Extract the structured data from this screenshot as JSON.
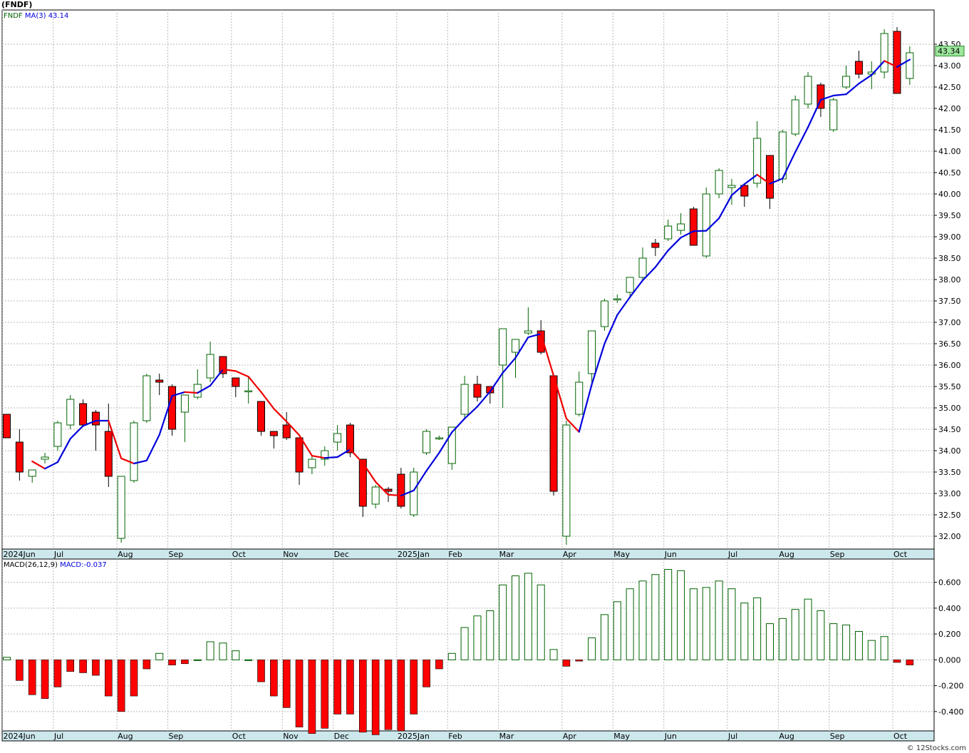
{
  "header": {
    "title": "(FNDF)",
    "credit": "© 12Stocks.com"
  },
  "colors": {
    "grid": "#b8b8b8",
    "up_outline": "#006400",
    "down_fill": "#ff0000",
    "ma_up": "#0000dd",
    "ma_down": "#ee0000",
    "macd_pos": "#006400",
    "macd_neg": "#ff0000",
    "axis_bar": "#cde8ec",
    "last_price_bg": "#9ee89e"
  },
  "chart_data": [
    {
      "type": "candlestick",
      "legend": {
        "symbol": "FNDF",
        "ma_label": "MA(3)",
        "ma_value": "43.14"
      },
      "last_price": "43.34",
      "ylim": [
        31.7,
        44.3
      ],
      "yticks": [
        "32.00",
        "32.50",
        "33.00",
        "33.50",
        "34.00",
        "34.50",
        "35.00",
        "35.50",
        "36.00",
        "36.50",
        "37.00",
        "37.50",
        "38.00",
        "38.50",
        "39.00",
        "39.50",
        "40.00",
        "40.50",
        "41.00",
        "41.50",
        "42.00",
        "42.50",
        "43.00",
        "43.50"
      ],
      "xticks": [
        {
          "label": "2024Jun",
          "week": 0
        },
        {
          "label": "Jul",
          "week": 4
        },
        {
          "label": "Aug",
          "week": 9
        },
        {
          "label": "Sep",
          "week": 13
        },
        {
          "label": "Oct",
          "week": 18
        },
        {
          "label": "Nov",
          "week": 22
        },
        {
          "label": "Dec",
          "week": 26
        },
        {
          "label": "2025Jan",
          "week": 31
        },
        {
          "label": "Feb",
          "week": 35
        },
        {
          "label": "Mar",
          "week": 39
        },
        {
          "label": "Apr",
          "week": 44
        },
        {
          "label": "May",
          "week": 48
        },
        {
          "label": "Jun",
          "week": 52
        },
        {
          "label": "Jul",
          "week": 57
        },
        {
          "label": "Aug",
          "week": 61
        },
        {
          "label": "Sep",
          "week": 65
        },
        {
          "label": "Oct",
          "week": 70
        }
      ],
      "ohlc": [
        [
          34.85,
          34.85,
          34.3,
          34.3
        ],
        [
          34.2,
          34.5,
          33.3,
          33.5
        ],
        [
          33.4,
          33.5,
          33.25,
          33.55
        ],
        [
          33.8,
          33.95,
          33.7,
          33.85
        ],
        [
          34.1,
          34.7,
          34.0,
          34.65
        ],
        [
          34.6,
          35.3,
          34.5,
          35.2
        ],
        [
          35.1,
          35.2,
          34.55,
          34.6
        ],
        [
          34.9,
          34.95,
          34.0,
          34.6
        ],
        [
          34.45,
          35.1,
          33.15,
          33.4
        ],
        [
          31.95,
          33.4,
          31.85,
          33.4
        ],
        [
          33.3,
          34.7,
          33.25,
          34.65
        ],
        [
          34.7,
          35.8,
          34.65,
          35.75
        ],
        [
          35.65,
          35.8,
          35.3,
          35.6
        ],
        [
          35.5,
          35.55,
          34.35,
          34.5
        ],
        [
          34.9,
          35.3,
          34.2,
          35.3
        ],
        [
          35.25,
          35.9,
          35.2,
          35.55
        ],
        [
          35.7,
          36.55,
          35.6,
          36.25
        ],
        [
          36.2,
          36.2,
          35.7,
          35.8
        ],
        [
          35.7,
          35.7,
          35.25,
          35.5
        ],
        [
          35.4,
          35.75,
          35.1,
          35.4
        ],
        [
          35.15,
          35.15,
          34.35,
          34.45
        ],
        [
          34.45,
          34.45,
          34.05,
          34.35
        ],
        [
          34.6,
          34.9,
          34.25,
          34.3
        ],
        [
          34.3,
          34.3,
          33.2,
          33.5
        ],
        [
          33.6,
          33.9,
          33.45,
          33.8
        ],
        [
          33.8,
          34.1,
          33.65,
          34.0
        ],
        [
          34.2,
          34.6,
          34.0,
          34.4
        ],
        [
          34.6,
          34.65,
          33.85,
          33.95
        ],
        [
          33.8,
          33.8,
          32.45,
          32.7
        ],
        [
          32.75,
          33.2,
          32.65,
          33.15
        ],
        [
          33.1,
          33.15,
          32.8,
          33.05
        ],
        [
          33.45,
          33.6,
          32.65,
          32.7
        ],
        [
          32.5,
          33.6,
          32.45,
          33.5
        ],
        [
          33.95,
          34.5,
          33.9,
          34.45
        ],
        [
          34.3,
          34.35,
          34.25,
          34.3
        ],
        [
          33.7,
          34.5,
          33.55,
          34.55
        ],
        [
          34.85,
          35.75,
          34.75,
          35.55
        ],
        [
          35.55,
          35.75,
          35.15,
          35.25
        ],
        [
          35.5,
          35.5,
          35.1,
          35.35
        ],
        [
          36.0,
          36.85,
          35.0,
          36.85
        ],
        [
          36.3,
          36.6,
          35.7,
          36.6
        ],
        [
          36.75,
          37.35,
          36.7,
          36.8
        ],
        [
          36.8,
          37.05,
          36.25,
          36.3
        ],
        [
          35.75,
          35.75,
          32.95,
          33.05
        ],
        [
          32.0,
          34.7,
          31.8,
          34.6
        ],
        [
          34.85,
          35.85,
          34.8,
          35.6
        ],
        [
          35.8,
          36.8,
          35.6,
          36.8
        ],
        [
          36.9,
          37.55,
          36.8,
          37.5
        ],
        [
          37.55,
          37.65,
          37.45,
          37.55
        ],
        [
          37.7,
          38.05,
          37.6,
          38.05
        ],
        [
          38.05,
          38.75,
          38.0,
          38.5
        ],
        [
          38.85,
          38.95,
          38.55,
          38.75
        ],
        [
          38.95,
          39.4,
          38.9,
          39.25
        ],
        [
          39.15,
          39.55,
          39.05,
          39.3
        ],
        [
          39.65,
          39.7,
          38.8,
          38.8
        ],
        [
          38.55,
          40.15,
          38.5,
          40.0
        ],
        [
          40.0,
          40.6,
          39.9,
          40.55
        ],
        [
          40.15,
          40.35,
          39.75,
          40.2
        ],
        [
          40.2,
          40.25,
          39.7,
          39.95
        ],
        [
          40.25,
          41.7,
          40.15,
          41.3
        ],
        [
          40.9,
          40.9,
          39.65,
          39.9
        ],
        [
          40.35,
          41.5,
          40.25,
          41.45
        ],
        [
          41.4,
          42.3,
          41.35,
          42.2
        ],
        [
          42.1,
          42.85,
          42.0,
          42.75
        ],
        [
          42.55,
          42.6,
          41.8,
          42.0
        ],
        [
          41.5,
          42.25,
          41.45,
          42.2
        ],
        [
          42.5,
          43.0,
          42.45,
          42.75
        ],
        [
          43.1,
          43.35,
          42.7,
          42.8
        ],
        [
          42.8,
          43.1,
          42.45,
          42.85
        ],
        [
          42.85,
          43.85,
          42.7,
          43.75
        ],
        [
          43.8,
          43.9,
          42.35,
          42.35
        ],
        [
          42.7,
          43.45,
          42.55,
          43.3
        ]
      ],
      "ma3": [
        null,
        null,
        33.75,
        33.58,
        33.73,
        34.28,
        34.58,
        34.7,
        34.7,
        33.82,
        33.7,
        33.77,
        34.37,
        35.28,
        35.37,
        35.35,
        35.52,
        35.9,
        35.86,
        35.73,
        35.37,
        34.98,
        34.68,
        34.36,
        33.88,
        33.83,
        33.85,
        34.03,
        33.71,
        33.27,
        32.97,
        32.95,
        33.07,
        33.53,
        33.95,
        34.43,
        34.75,
        35.03,
        35.38,
        35.82,
        36.17,
        36.65,
        36.73,
        35.75,
        34.75,
        34.44,
        35.55,
        36.5,
        37.17,
        37.59,
        37.98,
        38.29,
        38.68,
        38.98,
        39.13,
        39.14,
        39.43,
        39.97,
        40.23,
        40.45,
        40.24,
        40.36,
        40.98,
        41.56,
        42.2,
        42.3,
        42.33,
        42.58,
        42.78,
        43.11,
        42.97,
        43.14
      ],
      "macd_histogram": [
        0.02,
        -0.16,
        -0.27,
        -0.3,
        -0.21,
        -0.09,
        -0.1,
        -0.12,
        -0.28,
        -0.4,
        -0.28,
        -0.07,
        0.05,
        -0.04,
        -0.03,
        0.0,
        0.14,
        0.13,
        0.07,
        0.0,
        -0.17,
        -0.28,
        -0.37,
        -0.52,
        -0.57,
        -0.53,
        -0.42,
        -0.42,
        -0.56,
        -0.58,
        -0.54,
        -0.55,
        -0.42,
        -0.21,
        -0.07,
        0.05,
        0.25,
        0.34,
        0.38,
        0.58,
        0.65,
        0.67,
        0.58,
        0.08,
        -0.05,
        -0.01,
        0.17,
        0.35,
        0.45,
        0.55,
        0.61,
        0.66,
        0.7,
        0.69,
        0.55,
        0.56,
        0.61,
        0.55,
        0.44,
        0.48,
        0.28,
        0.32,
        0.39,
        0.47,
        0.38,
        0.28,
        0.27,
        0.22,
        0.15,
        0.18,
        -0.02,
        -0.04
      ],
      "macd_legend": {
        "label": "MACD(26,12,9)",
        "value": "MACD:-0.037"
      },
      "macd_yticks": [
        "0.600",
        "0.400",
        "0.200",
        "0.000",
        "-0.200",
        "-0.400"
      ],
      "macd_ylim": [
        -0.55,
        0.78
      ],
      "grid": true
    }
  ]
}
